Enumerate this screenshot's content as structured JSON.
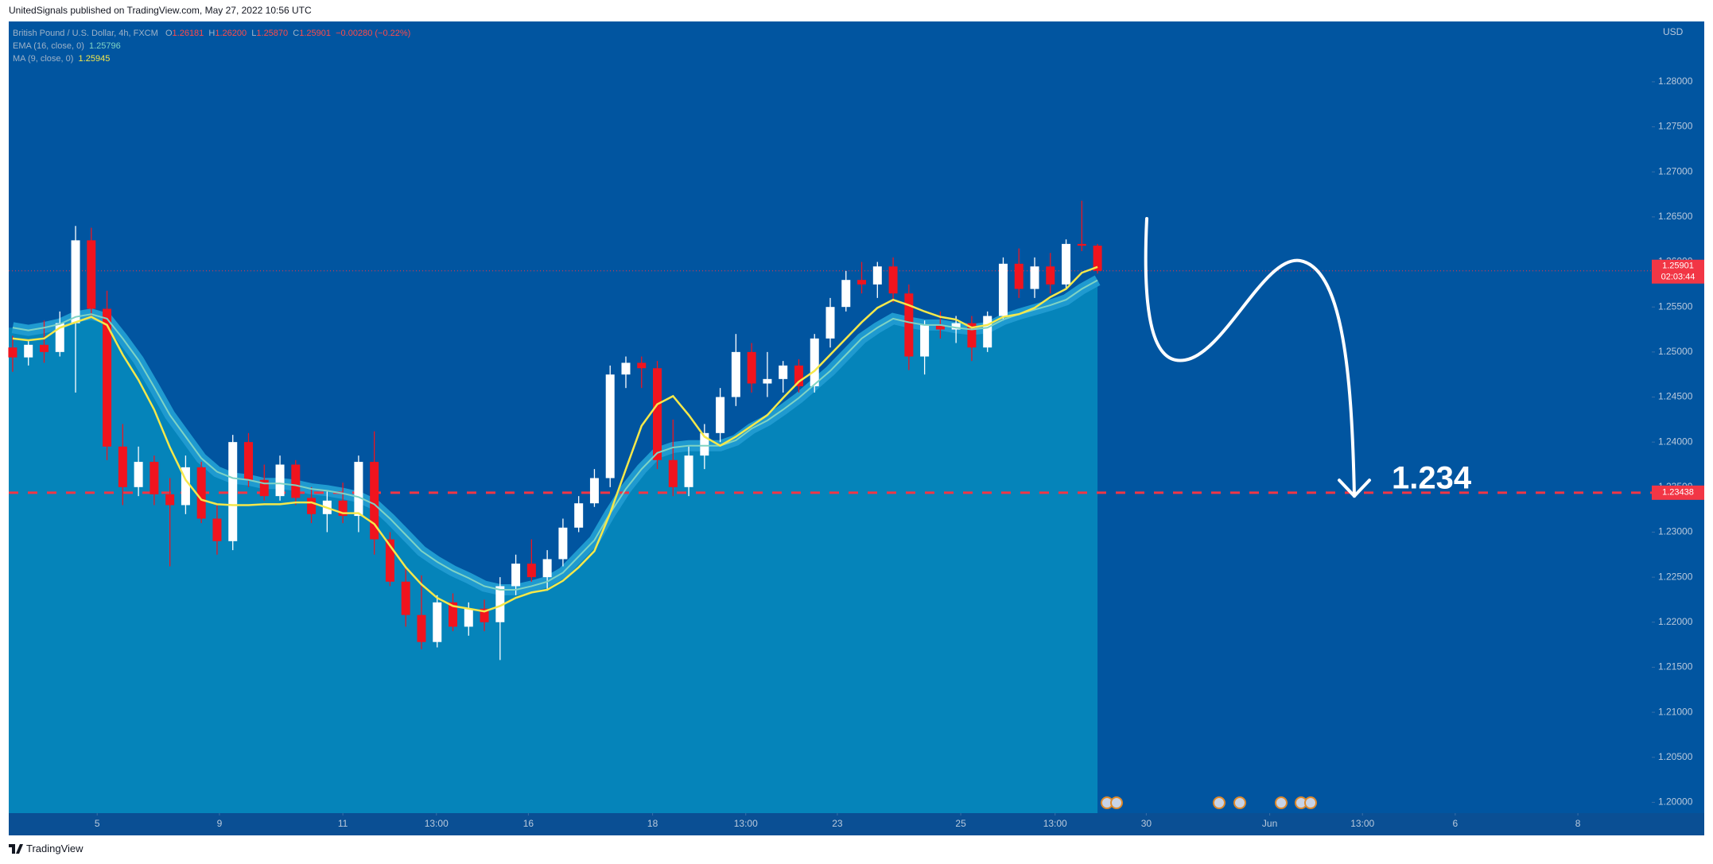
{
  "header": {
    "publisher": "UnitedSignals published on TradingView.com, May 27, 2022 10:56 UTC"
  },
  "footer": {
    "brand": "TradingView"
  },
  "chart_data": {
    "type": "candlestick",
    "symbol": "British Pound / U.S. Dollar, 4h, FXCM",
    "legend_ohlc": {
      "labels": [
        "O",
        "H",
        "L",
        "C"
      ],
      "values": [
        1.26181,
        {
          "value": 1.262,
          "label": "1.26200"
        },
        {
          "value": 1.2587,
          "label": "1.25870"
        },
        1.25901
      ]
    },
    "legend_change": "−0.00280 (−0.22%)",
    "currency": "USD",
    "up_color": "#ffffff",
    "down_color": "#f0141e",
    "x": [
      0.5,
      2.5,
      4.5,
      6.5,
      8.5,
      10.5,
      12.5,
      14.5,
      16.5,
      18.5,
      20.5,
      22.5,
      24.5,
      26.5,
      28.5,
      30.5,
      32.5,
      34.5,
      36.5,
      38.5,
      40.5,
      42.5,
      44.5,
      46.5,
      48.5,
      50.5,
      52.5,
      54.5,
      56.5,
      58.5,
      60.5,
      62.5,
      64.5,
      66.5,
      68.5,
      70.5,
      72.5,
      74.5,
      76.5,
      78.5,
      80.5,
      82.5,
      84.5,
      86.5,
      88.5,
      90.5,
      92.5,
      94.5,
      96.5,
      98.5,
      100.5,
      102.5,
      104.5,
      106.5,
      108.5,
      110.5,
      112.5,
      114.5,
      116.5,
      118.5,
      120.5,
      122.5,
      124.5,
      126.5,
      128.5,
      130.5,
      132.5,
      134.5,
      136.5,
      138.5
    ],
    "open": [
      1.2505,
      1.2494,
      1.2508,
      1.25,
      1.2532,
      1.2624,
      1.2548,
      1.2395,
      1.235,
      1.2378,
      1.2342,
      1.233,
      1.2372,
      1.2315,
      1.229,
      1.24,
      1.2358,
      1.234,
      1.2375,
      1.2338,
      1.232,
      1.2335,
      1.2318,
      1.2378,
      1.2292,
      1.2245,
      1.2208,
      1.2178,
      1.2222,
      1.2195,
      1.2215,
      1.22,
      1.224,
      1.2265,
      1.225,
      1.227,
      1.2305,
      1.2332,
      1.236,
      1.2475,
      1.2488,
      1.2482,
      1.238,
      1.235,
      1.2385,
      1.241,
      1.245,
      1.25,
      1.2465,
      1.247,
      1.2485,
      1.2462,
      1.2515,
      1.255,
      1.258,
      1.2575,
      1.2595,
      1.2565,
      1.2495,
      1.253,
      1.2525,
      1.2532,
      1.2505,
      1.254,
      1.2598,
      1.257,
      1.2595,
      1.2575,
      1.262,
      1.26181
    ],
    "high": [
      1.2518,
      1.2512,
      1.2535,
      1.2545,
      1.264,
      1.2638,
      1.2568,
      1.242,
      1.2395,
      1.2385,
      1.236,
      1.2385,
      1.2378,
      1.233,
      1.2408,
      1.241,
      1.2375,
      1.2385,
      1.238,
      1.235,
      1.2345,
      1.2355,
      1.2385,
      1.2412,
      1.23,
      1.226,
      1.2252,
      1.223,
      1.2232,
      1.2222,
      1.2225,
      1.225,
      1.2275,
      1.2292,
      1.228,
      1.2315,
      1.234,
      1.237,
      1.2485,
      1.2495,
      1.2495,
      1.249,
      1.2425,
      1.2395,
      1.242,
      1.246,
      1.252,
      1.251,
      1.25,
      1.249,
      1.2492,
      1.252,
      1.256,
      1.259,
      1.26,
      1.26,
      1.2605,
      1.2575,
      1.2535,
      1.2545,
      1.254,
      1.254,
      1.2545,
      1.2605,
      1.2615,
      1.2605,
      1.261,
      1.2625,
      1.2668,
      1.262
    ],
    "low": [
      1.2478,
      1.2485,
      1.2488,
      1.2495,
      1.2455,
      1.254,
      1.238,
      1.233,
      1.234,
      1.233,
      1.2262,
      1.232,
      1.231,
      1.2275,
      1.228,
      1.235,
      1.2335,
      1.2335,
      1.233,
      1.231,
      1.23,
      1.231,
      1.23,
      1.2275,
      1.224,
      1.2195,
      1.217,
      1.2172,
      1.219,
      1.2185,
      1.219,
      1.2158,
      1.223,
      1.2245,
      1.2235,
      1.2262,
      1.23,
      1.2328,
      1.235,
      1.246,
      1.246,
      1.237,
      1.234,
      1.234,
      1.237,
      1.24,
      1.244,
      1.2455,
      1.245,
      1.2455,
      1.2455,
      1.2455,
      1.2505,
      1.2545,
      1.2565,
      1.256,
      1.2555,
      1.248,
      1.2475,
      1.2515,
      1.251,
      1.249,
      1.25,
      1.2535,
      1.256,
      1.256,
      1.2565,
      1.257,
      1.2612,
      1.2587
    ],
    "close": [
      1.2494,
      1.2508,
      1.25,
      1.2532,
      1.2624,
      1.2548,
      1.2395,
      1.235,
      1.2378,
      1.2342,
      1.233,
      1.2372,
      1.2315,
      1.229,
      1.24,
      1.2358,
      1.234,
      1.2375,
      1.2338,
      1.232,
      1.2335,
      1.2318,
      1.2378,
      1.2292,
      1.2245,
      1.2208,
      1.2178,
      1.2222,
      1.2195,
      1.2215,
      1.22,
      1.224,
      1.2265,
      1.225,
      1.227,
      1.2305,
      1.2332,
      1.236,
      1.2475,
      1.2488,
      1.2482,
      1.238,
      1.235,
      1.2385,
      1.241,
      1.245,
      1.25,
      1.2465,
      1.247,
      1.2485,
      1.2462,
      1.2515,
      1.255,
      1.258,
      1.2575,
      1.2595,
      1.2565,
      1.2495,
      1.253,
      1.2525,
      1.2532,
      1.2505,
      1.254,
      1.2598,
      1.257,
      1.2595,
      1.2575,
      1.262,
      1.2618,
      1.25901
    ],
    "series": [
      {
        "name": "EMA (16, close, 0)",
        "color": "#7fd3c4",
        "values": [
          1.2527,
          1.2524,
          1.2527,
          1.2531,
          1.2539,
          1.2542,
          1.2537,
          1.2515,
          1.2491,
          1.2461,
          1.243,
          1.2406,
          1.2382,
          1.2367,
          1.236,
          1.2358,
          1.2354,
          1.2354,
          1.2352,
          1.2348,
          1.2346,
          1.2343,
          1.2339,
          1.2331,
          1.2315,
          1.2297,
          1.2279,
          1.2267,
          1.2257,
          1.2249,
          1.224,
          1.2236,
          1.2236,
          1.224,
          1.2245,
          1.2255,
          1.2273,
          1.2291,
          1.2321,
          1.2348,
          1.237,
          1.2388,
          1.2394,
          1.2396,
          1.2396,
          1.2396,
          1.2402,
          1.2415,
          1.2424,
          1.2436,
          1.2449,
          1.2464,
          1.2479,
          1.2497,
          1.2515,
          1.2527,
          1.2537,
          1.2533,
          1.253,
          1.253,
          1.2527,
          1.2525,
          1.2527,
          1.2536,
          1.2542,
          1.2547,
          1.2552,
          1.2558,
          1.257,
          1.25796
        ]
      },
      {
        "name": "MA (9, close, 0)",
        "color": "#f5e84a",
        "values": [
          1.2515,
          1.2513,
          1.2515,
          1.2527,
          1.2533,
          1.2539,
          1.253,
          1.2497,
          1.2469,
          1.2436,
          1.2394,
          1.2358,
          1.2336,
          1.2331,
          1.233,
          1.233,
          1.2331,
          1.2331,
          1.2333,
          1.2333,
          1.2327,
          1.2321,
          1.2321,
          1.2309,
          1.2285,
          1.2261,
          1.2242,
          1.2227,
          1.2218,
          1.2215,
          1.2212,
          1.2218,
          1.2227,
          1.2233,
          1.2236,
          1.2246,
          1.2261,
          1.2279,
          1.2321,
          1.237,
          1.2418,
          1.2442,
          1.2451,
          1.243,
          1.2406,
          1.2396,
          1.2406,
          1.2418,
          1.243,
          1.2449,
          1.2467,
          1.2479,
          1.2497,
          1.2515,
          1.2533,
          1.2549,
          1.2558,
          1.2552,
          1.2545,
          1.2539,
          1.2536,
          1.2527,
          1.253,
          1.2539,
          1.2542,
          1.2549,
          1.2561,
          1.257,
          1.2588,
          1.25945
        ]
      }
    ],
    "xlim": [
      0,
      209
    ],
    "xticks": [
      {
        "value": 11.25,
        "label": "5"
      },
      {
        "value": 26.8,
        "label": "9"
      },
      {
        "value": 42.5,
        "label": "11"
      },
      {
        "value": 54.4,
        "label": "13:00"
      },
      {
        "value": 66.1,
        "label": "16"
      },
      {
        "value": 81.9,
        "label": "18"
      },
      {
        "value": 93.75,
        "label": "13:00"
      },
      {
        "value": 105.4,
        "label": "23"
      },
      {
        "value": 121.1,
        "label": "25"
      },
      {
        "value": 133.1,
        "label": "13:00"
      },
      {
        "value": 144.7,
        "label": "30"
      },
      {
        "value": 160.4,
        "label": "Jun"
      },
      {
        "value": 172.2,
        "label": "13:00"
      },
      {
        "value": 184.0,
        "label": "6"
      },
      {
        "value": 199.6,
        "label": "8"
      }
    ],
    "ylim": [
      1.1988,
      1.2867
    ],
    "yticks": [
      {
        "value": 1.2,
        "label": "1.20000"
      },
      {
        "value": 1.205,
        "label": "1.20500"
      },
      {
        "value": 1.21,
        "label": "1.21000"
      },
      {
        "value": 1.215,
        "label": "1.21500"
      },
      {
        "value": 1.22,
        "label": "1.22000"
      },
      {
        "value": 1.225,
        "label": "1.22500"
      },
      {
        "value": 1.23,
        "label": "1.23000"
      },
      {
        "value": 1.235,
        "label": "1.23500"
      },
      {
        "value": 1.24,
        "label": "1.24000"
      },
      {
        "value": 1.245,
        "label": "1.24500"
      },
      {
        "value": 1.25,
        "label": "1.25000"
      },
      {
        "value": 1.255,
        "label": "1.25500"
      },
      {
        "value": 1.26,
        "label": "1.26000"
      },
      {
        "value": 1.265,
        "label": "1.26500"
      },
      {
        "value": 1.27,
        "label": "1.27000"
      },
      {
        "value": 1.275,
        "label": "1.27500"
      },
      {
        "value": 1.28,
        "label": "1.28000"
      }
    ],
    "countdown": "02:03:44",
    "target_line": 1.23438,
    "line_color": "#f23645",
    "annotation": 1.234
  }
}
